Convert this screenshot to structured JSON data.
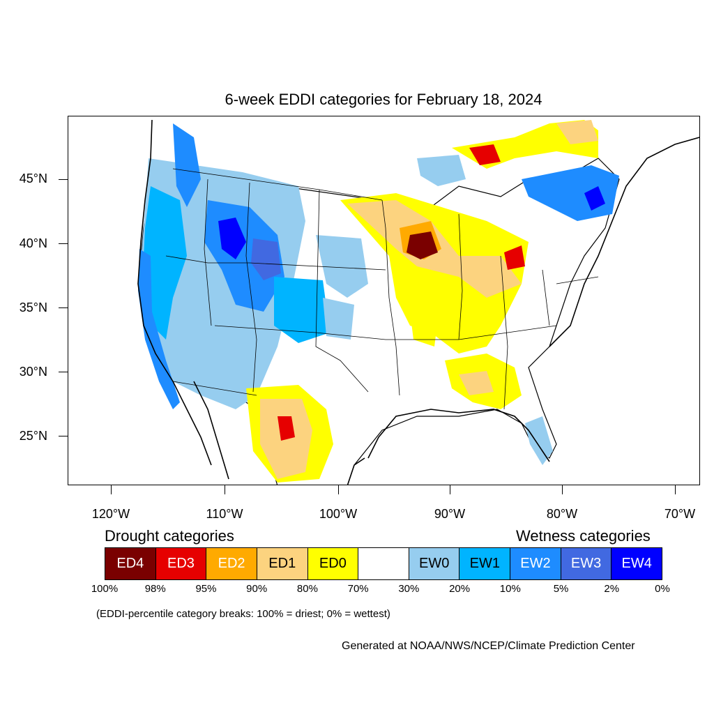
{
  "title": "6-week EDDI categories for February 18, 2024",
  "lat_labels": [
    "45°N",
    "40°N",
    "35°N",
    "30°N",
    "25°N"
  ],
  "lon_labels": [
    "120°W",
    "110°W",
    "100°W",
    "90°W",
    "80°W",
    "70°W"
  ],
  "legend": {
    "drought_heading": "Drought categories",
    "wetness_heading": "Wetness categories",
    "categories": [
      {
        "label": "ED4",
        "color": "#7a0000",
        "text_color": "#ffffff"
      },
      {
        "label": "ED3",
        "color": "#e60000",
        "text_color": "#ffffff"
      },
      {
        "label": "ED2",
        "color": "#ffaa00",
        "text_color": "#ffffff"
      },
      {
        "label": "ED1",
        "color": "#fcd37f",
        "text_color": "#000000"
      },
      {
        "label": "ED0",
        "color": "#ffff00",
        "text_color": "#000000"
      },
      {
        "label": "",
        "color": "#ffffff",
        "text_color": "#000000"
      },
      {
        "label": "EW0",
        "color": "#96cdef",
        "text_color": "#000000"
      },
      {
        "label": "EW1",
        "color": "#00b4ff",
        "text_color": "#000000"
      },
      {
        "label": "EW2",
        "color": "#1e8cff",
        "text_color": "#ffffff"
      },
      {
        "label": "EW3",
        "color": "#4169e1",
        "text_color": "#ffffff"
      },
      {
        "label": "EW4",
        "color": "#0000ff",
        "text_color": "#ffffff"
      }
    ],
    "breaks": [
      "100%",
      "98%",
      "95%",
      "90%",
      "80%",
      "70%",
      "30%",
      "20%",
      "10%",
      "5%",
      "2%",
      "0%"
    ],
    "note": "(EDDI-percentile category breaks: 100% = driest; 0% = wettest)"
  },
  "credit": "Generated at NOAA/NWS/NCEP/Climate Prediction Center"
}
